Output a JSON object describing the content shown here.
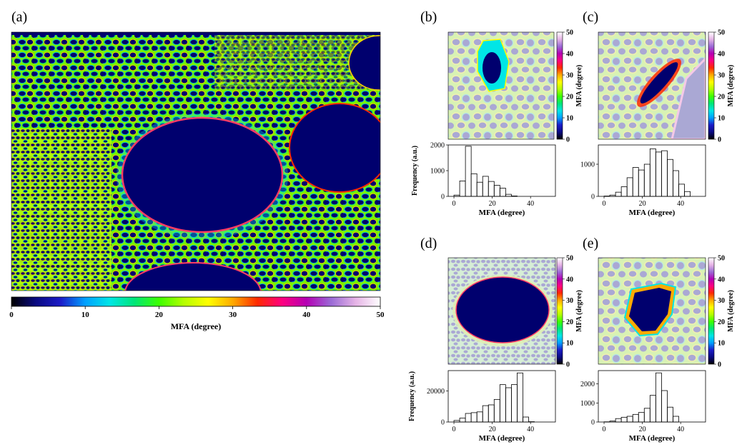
{
  "colors": {
    "jet_like_stops": [
      "#000000",
      "#0a0a82",
      "#1c1cc8",
      "#00a0ff",
      "#00e6e6",
      "#00e678",
      "#3cff00",
      "#b4ff00",
      "#ffff00",
      "#ffaa00",
      "#ff2a00",
      "#ff0080",
      "#b400b4",
      "#9b6bd6",
      "#e6b4e6",
      "#ffffff"
    ],
    "lumen": "#00006e",
    "background_cell": "#aaa8d4"
  },
  "panels": {
    "a": {
      "label": "(a)"
    },
    "b": {
      "label": "(b)"
    },
    "c": {
      "label": "(c)"
    },
    "d": {
      "label": "(d)"
    },
    "e": {
      "label": "(e)"
    }
  },
  "colorbar_main": {
    "ticks": [
      "0",
      "10",
      "20",
      "30",
      "40",
      "50"
    ],
    "label": "MFA (degree)"
  },
  "colorbar_small": {
    "ticks": [
      "0",
      "10",
      "20",
      "30",
      "40",
      "50"
    ],
    "label": "MFA (degree)"
  },
  "chart_data": [
    {
      "panel": "b",
      "type": "bar",
      "bin_edges": [
        0,
        3,
        6,
        9,
        12,
        15,
        18,
        21,
        24,
        27,
        30,
        33
      ],
      "values": [
        50,
        600,
        1950,
        880,
        550,
        780,
        580,
        430,
        320,
        80,
        15
      ],
      "xlabel": "MFA (degree)",
      "ylabel": "Frequency (a.u.)",
      "xlim": [
        -3,
        53
      ],
      "ylim": [
        0,
        2000
      ],
      "xticks": [
        0,
        20,
        40
      ],
      "yticks": [
        0,
        1000,
        2000
      ]
    },
    {
      "panel": "c",
      "type": "bar",
      "bin_edges": [
        0,
        3,
        6,
        9,
        12,
        15,
        18,
        21,
        24,
        27,
        30,
        33,
        36,
        39,
        42,
        45,
        48
      ],
      "values": [
        10,
        40,
        130,
        300,
        580,
        900,
        820,
        1000,
        1480,
        1380,
        1420,
        1150,
        800,
        380,
        150,
        0
      ],
      "xlabel": "MFA (degree)",
      "ylabel": "",
      "xlim": [
        -3,
        53
      ],
      "ylim": [
        0,
        1600
      ],
      "xticks": [
        0,
        20,
        40
      ],
      "yticks": [
        0,
        1000
      ]
    },
    {
      "panel": "d",
      "type": "bar",
      "bin_edges": [
        0,
        3,
        6,
        9,
        12,
        15,
        18,
        21,
        24,
        27,
        30,
        33,
        36,
        39,
        42,
        45
      ],
      "values": [
        1000,
        2500,
        5500,
        6000,
        6500,
        10500,
        11000,
        14500,
        24000,
        22000,
        24000,
        31500,
        3200,
        200,
        0
      ],
      "xlabel": "MFA (degree)",
      "ylabel": "Frequency (a.u.)",
      "xlim": [
        -3,
        53
      ],
      "ylim": [
        0,
        33000
      ],
      "xticks": [
        0,
        20,
        40
      ],
      "yticks": [
        0,
        20000
      ]
    },
    {
      "panel": "e",
      "type": "bar",
      "bin_edges": [
        0,
        3,
        6,
        9,
        12,
        15,
        18,
        21,
        24,
        27,
        30,
        33,
        36,
        39,
        42
      ],
      "values": [
        10,
        50,
        180,
        250,
        300,
        400,
        500,
        720,
        1400,
        2580,
        1650,
        780,
        300,
        0
      ],
      "xlabel": "MFA (degree)",
      "ylabel": "",
      "xlim": [
        -3,
        53
      ],
      "ylim": [
        0,
        2700
      ],
      "xticks": [
        0,
        20,
        40
      ],
      "yticks": [
        0,
        1000,
        2000
      ]
    }
  ]
}
